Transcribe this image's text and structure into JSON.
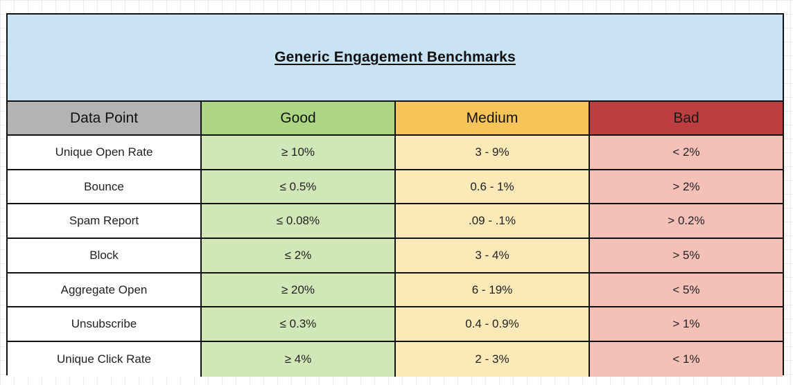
{
  "title": "Generic Engagement Benchmarks",
  "colors": {
    "title_band": "#c9e2f4",
    "header_data_point": "#b3b3b3",
    "header_good": "#add684",
    "header_medium": "#f6c458",
    "header_bad": "#bc3e40",
    "good_cells": "#d1e7b7",
    "medium_cells": "#fce9b8",
    "bad_cells": "#f4c0b8"
  },
  "headers": {
    "data_point": "Data Point",
    "good": "Good",
    "medium": "Medium",
    "bad": "Bad"
  },
  "rows": [
    {
      "data_point": "Unique Open Rate",
      "good": "≥ 10%",
      "medium": "3 - 9%",
      "bad": "< 2%"
    },
    {
      "data_point": "Bounce",
      "good": "≤ 0.5%",
      "medium": "0.6 - 1%",
      "bad": "> 2%"
    },
    {
      "data_point": "Spam Report",
      "good": "≤ 0.08%",
      "medium": ".09 - .1%",
      "bad": "> 0.2%"
    },
    {
      "data_point": "Block",
      "good": "≤ 2%",
      "medium": "3 - 4%",
      "bad": "> 5%"
    },
    {
      "data_point": "Aggregate Open",
      "good": "≥ 20%",
      "medium": "6 - 19%",
      "bad": "< 5%"
    },
    {
      "data_point": "Unsubscribe",
      "good": "≤ 0.3%",
      "medium": "0.4 - 0.9%",
      "bad": "> 1%"
    },
    {
      "data_point": "Unique Click Rate",
      "good": "≥ 4%",
      "medium": "2 - 3%",
      "bad": "< 1%"
    }
  ]
}
